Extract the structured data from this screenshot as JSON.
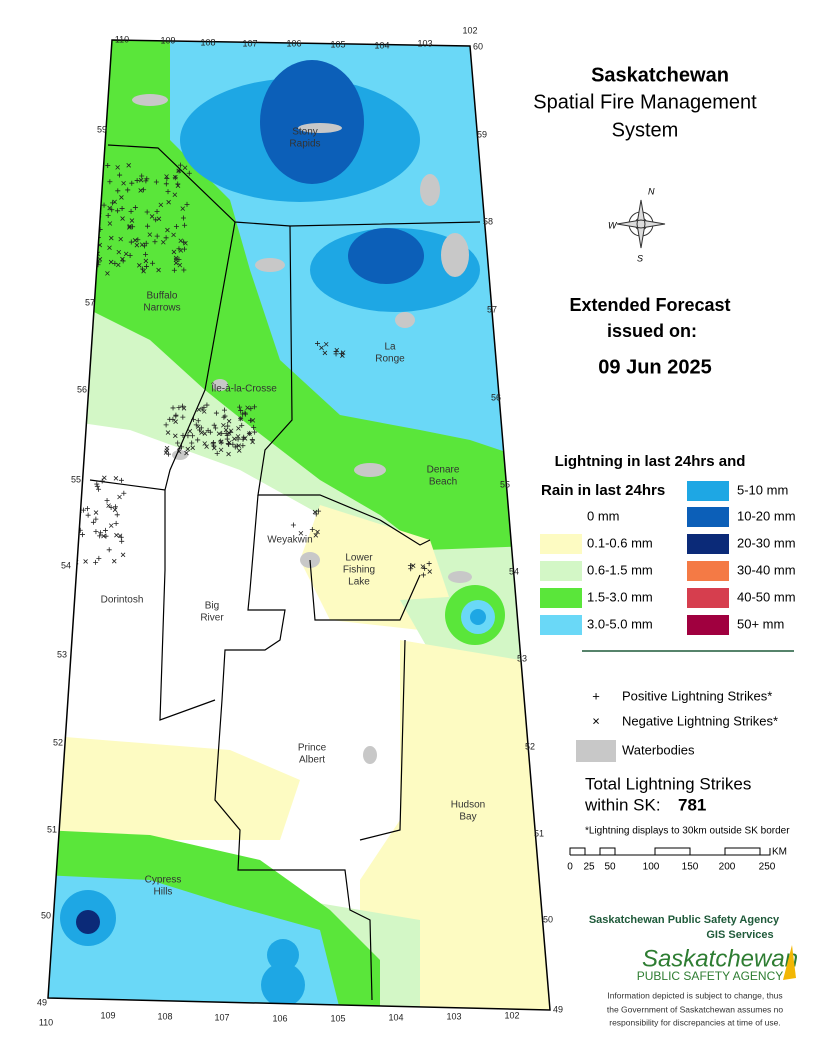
{
  "header": {
    "title": "Saskatchewan",
    "subtitle_lines": [
      "Spatial Fire Management",
      "System"
    ]
  },
  "compass": {
    "letters": [
      "N",
      "W",
      "S"
    ]
  },
  "forecast": {
    "lines": [
      "Extended Forecast",
      "issued on:"
    ],
    "date": "09 Jun 2025"
  },
  "legend": {
    "title_lines": [
      "Lightning in last 24hrs and",
      "Rain in last 24hrs"
    ],
    "rain_classes": [
      {
        "label": "0 mm",
        "color": "#ffffff"
      },
      {
        "label": "0.1-0.6 mm",
        "color": "#fdfbc2"
      },
      {
        "label": "0.6-1.5 mm",
        "color": "#d3f7c6"
      },
      {
        "label": "1.5-3.0 mm",
        "color": "#5ae63a"
      },
      {
        "label": "3.0-5.0 mm",
        "color": "#6ad8f7"
      },
      {
        "label": "5-10 mm",
        "color": "#1ea7e4"
      },
      {
        "label": "10-20 mm",
        "color": "#0c5fb8"
      },
      {
        "label": "20-30 mm",
        "color": "#0b2a78"
      },
      {
        "label": "30-40 mm",
        "color": "#f47a45"
      },
      {
        "label": "40-50 mm",
        "color": "#d63e4e"
      },
      {
        "label": "50+ mm",
        "color": "#a0003f"
      }
    ],
    "symbols": [
      {
        "symbol": "+",
        "label": "Positive Lightning Strikes*"
      },
      {
        "symbol": "×",
        "label": "Negative Lightning Strikes*"
      }
    ],
    "waterbodies": {
      "label": "Waterbodies",
      "color": "#c8c8c8"
    }
  },
  "total": {
    "lines": [
      "Total Lightning Strikes",
      "within SK:"
    ],
    "count": "781",
    "note": "*Lightning displays to 30km outside SK border"
  },
  "scale_bar": {
    "labels": [
      "0",
      "25",
      "50",
      "100",
      "150",
      "200",
      "250"
    ],
    "unit": "KM"
  },
  "agency": {
    "lines": [
      "Saskatchewan Public Safety Agency",
      "GIS  Services"
    ],
    "logo_lines": [
      "Saskatchewan",
      "PUBLIC SAFETY AGENCY"
    ],
    "disclaimer": [
      "Information depicted is subject to change, thus",
      "the Government of Saskatchewan assumes no",
      "responsibility for discrepancies at time of use."
    ]
  },
  "map": {
    "places": [
      {
        "lines": [
          "Stony",
          "Rapids"
        ]
      },
      {
        "lines": [
          "Buffalo",
          "Narrows"
        ]
      },
      {
        "lines": [
          "Île-à-la-Crosse"
        ]
      },
      {
        "lines": [
          "La",
          "Ronge"
        ]
      },
      {
        "lines": [
          "Denare",
          "Beach"
        ]
      },
      {
        "lines": [
          "Weyakwin"
        ]
      },
      {
        "lines": [
          "Lower",
          "Fishing",
          "Lake"
        ]
      },
      {
        "lines": [
          "Dorintosh"
        ]
      },
      {
        "lines": [
          "Big",
          "River"
        ]
      },
      {
        "lines": [
          "Prince",
          "Albert"
        ]
      },
      {
        "lines": [
          "Hudson",
          "Bay"
        ]
      },
      {
        "lines": [
          "Cypress",
          "Hills"
        ]
      }
    ],
    "longitudes_top": [
      "110",
      "109",
      "108",
      "107",
      "106",
      "105",
      "104",
      "103",
      "102",
      "60"
    ],
    "longitudes_bottom": [
      "49",
      "110",
      "109",
      "108",
      "107",
      "106",
      "105",
      "104",
      "103",
      "102",
      "49"
    ],
    "latitudes_left": [
      "59",
      "57",
      "56",
      "55",
      "54",
      "53",
      "52",
      "51",
      "50"
    ],
    "latitudes_right": [
      "59",
      "58",
      "57",
      "56",
      "55",
      "54",
      "53",
      "52",
      "51",
      "50"
    ]
  }
}
